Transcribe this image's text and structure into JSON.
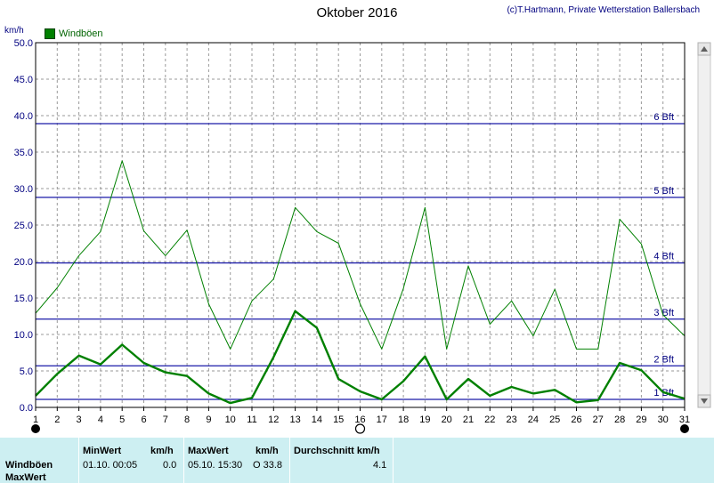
{
  "header": {
    "title": "Oktober 2016",
    "copyright": "(c)T.Hartmann, Private Wetterstation Ballersbach"
  },
  "chart_data": {
    "type": "line",
    "ylabel": "km/h",
    "ylim": [
      0,
      50
    ],
    "yticks": [
      "0.0",
      "5.0",
      "10.0",
      "15.0",
      "20.0",
      "25.0",
      "30.0",
      "35.0",
      "40.0",
      "45.0",
      "50.0"
    ],
    "xlim": [
      1,
      31
    ],
    "xticks": [
      "1",
      "2",
      "3",
      "4",
      "5",
      "6",
      "7",
      "8",
      "9",
      "10",
      "11",
      "12",
      "13",
      "14",
      "15",
      "16",
      "17",
      "18",
      "19",
      "20",
      "21",
      "22",
      "23",
      "24",
      "25",
      "26",
      "27",
      "28",
      "29",
      "30",
      "31"
    ],
    "grid": true,
    "legend": "top-left",
    "series": [
      {
        "name": "Windböen",
        "color": "#008000",
        "role": "average",
        "x": [
          1,
          2,
          3,
          4,
          5,
          6,
          7,
          8,
          9,
          10,
          11,
          12,
          13,
          14,
          15,
          16,
          17,
          18,
          19,
          20,
          21,
          22,
          23,
          24,
          25,
          26,
          27,
          28,
          29,
          30,
          31
        ],
        "values": [
          1.6,
          4.6,
          7.1,
          5.9,
          8.6,
          6.1,
          4.8,
          4.3,
          1.9,
          0.6,
          1.3,
          6.9,
          13.2,
          10.9,
          3.9,
          2.2,
          1.1,
          3.6,
          7.0,
          1.1,
          3.9,
          1.6,
          2.8,
          1.9,
          2.4,
          0.7,
          1.0,
          6.1,
          5.1,
          2.1,
          1.2
        ]
      },
      {
        "name": "MaxWert",
        "color": "#008000",
        "role": "max",
        "x": [
          1,
          2,
          3,
          4,
          5,
          6,
          7,
          8,
          9,
          10,
          11,
          12,
          13,
          14,
          15,
          16,
          17,
          18,
          19,
          20,
          21,
          22,
          23,
          24,
          25,
          26,
          27,
          28,
          29,
          30,
          31
        ],
        "values": [
          12.9,
          16.4,
          20.8,
          24.1,
          33.8,
          24.2,
          20.8,
          24.3,
          14.2,
          8.0,
          14.6,
          17.6,
          27.4,
          24.1,
          22.5,
          14.2,
          8.0,
          16.3,
          27.4,
          8.0,
          19.4,
          11.4,
          14.6,
          9.8,
          16.2,
          8.0,
          8.0,
          25.8,
          22.4,
          12.7,
          9.8
        ]
      }
    ],
    "reference_lines": [
      {
        "label": "1 Bft",
        "value": 1.1
      },
      {
        "label": "2 Bft",
        "value": 5.7
      },
      {
        "label": "3 Bft",
        "value": 12.1
      },
      {
        "label": "4 Bft",
        "value": 19.8
      },
      {
        "label": "5 Bft",
        "value": 28.8
      },
      {
        "label": "6 Bft",
        "value": 38.9
      }
    ],
    "moon_markers": [
      {
        "day": 1,
        "phase": "new-moon"
      },
      {
        "day": 16,
        "phase": "full-moon"
      },
      {
        "day": 31,
        "phase": "new-moon"
      }
    ]
  },
  "stats": {
    "headers": {
      "min": "MinWert",
      "min_unit": "km/h",
      "max": "MaxWert",
      "max_unit": "km/h",
      "avg": "Durchschnitt km/h"
    },
    "rows": [
      {
        "label": "Windböen",
        "min_time": "01.10.  00:05",
        "min_value": "0.0",
        "max_time": "05.10.  15:30",
        "max_value": "O 33.8",
        "avg": "4.1"
      },
      {
        "label": "MaxWert"
      }
    ]
  }
}
